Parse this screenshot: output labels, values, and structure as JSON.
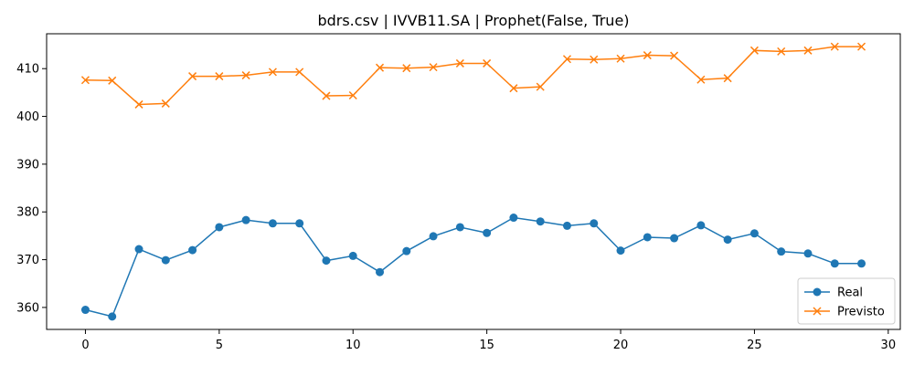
{
  "chart_data": {
    "type": "line",
    "title": "bdrs.csv | IVVB11.SA | Prophet(False, True)",
    "xlabel": "",
    "ylabel": "",
    "xlim": [
      -1.45,
      30.45
    ],
    "ylim": [
      355.4,
      417.3
    ],
    "xticks": [
      0,
      5,
      10,
      15,
      20,
      25,
      30
    ],
    "yticks": [
      360,
      370,
      380,
      390,
      400,
      410
    ],
    "grid": false,
    "legend_position": "lower-right",
    "x": [
      0,
      1,
      2,
      3,
      4,
      5,
      6,
      7,
      8,
      9,
      10,
      11,
      12,
      13,
      14,
      15,
      16,
      17,
      18,
      19,
      20,
      21,
      22,
      23,
      24,
      25,
      26,
      27,
      28,
      29
    ],
    "series": [
      {
        "name": "Real",
        "color": "#1f77b4",
        "marker": "circle",
        "values": [
          359.5,
          358.1,
          372.2,
          369.9,
          372.0,
          376.8,
          378.3,
          377.6,
          377.6,
          369.8,
          370.8,
          367.4,
          371.8,
          374.9,
          376.8,
          375.6,
          378.8,
          378.0,
          377.1,
          377.6,
          371.9,
          374.7,
          374.5,
          377.2,
          374.2,
          375.5,
          371.7,
          371.3,
          369.2,
          369.2
        ]
      },
      {
        "name": "Previsto",
        "color": "#ff7f0e",
        "marker": "x",
        "values": [
          407.6,
          407.5,
          402.5,
          402.7,
          408.4,
          408.4,
          408.6,
          409.3,
          409.3,
          404.3,
          404.4,
          410.2,
          410.1,
          410.3,
          411.1,
          411.1,
          405.9,
          406.2,
          412.0,
          411.9,
          412.1,
          412.8,
          412.7,
          407.7,
          408.0,
          413.8,
          413.6,
          413.8,
          414.6,
          414.6
        ]
      }
    ]
  }
}
